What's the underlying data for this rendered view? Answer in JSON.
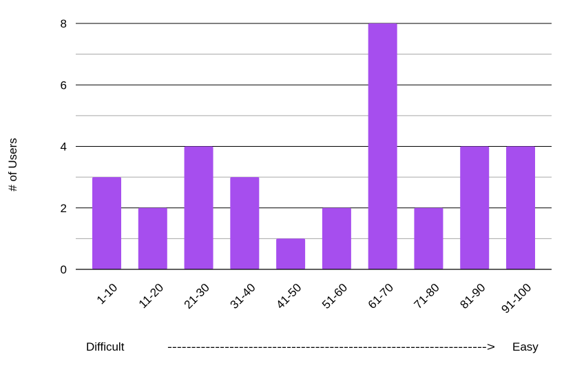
{
  "chart_data": {
    "type": "bar",
    "categories": [
      "1-10",
      "11-20",
      "21-30",
      "31-40",
      "41-50",
      "51-60",
      "61-70",
      "71-80",
      "81-90",
      "91-100"
    ],
    "values": [
      3,
      2,
      4,
      3,
      1,
      2,
      8,
      2,
      4,
      4
    ],
    "ylabel": "# of Users",
    "xlabel": "",
    "ylim": [
      0,
      8
    ],
    "yticks": [
      0,
      2,
      4,
      6,
      8
    ],
    "grid": true,
    "bar_color": "#a64eee",
    "footer": {
      "left": "Difficult",
      "arrow": "------------------------------------------------------------------->",
      "right": "Easy"
    }
  }
}
